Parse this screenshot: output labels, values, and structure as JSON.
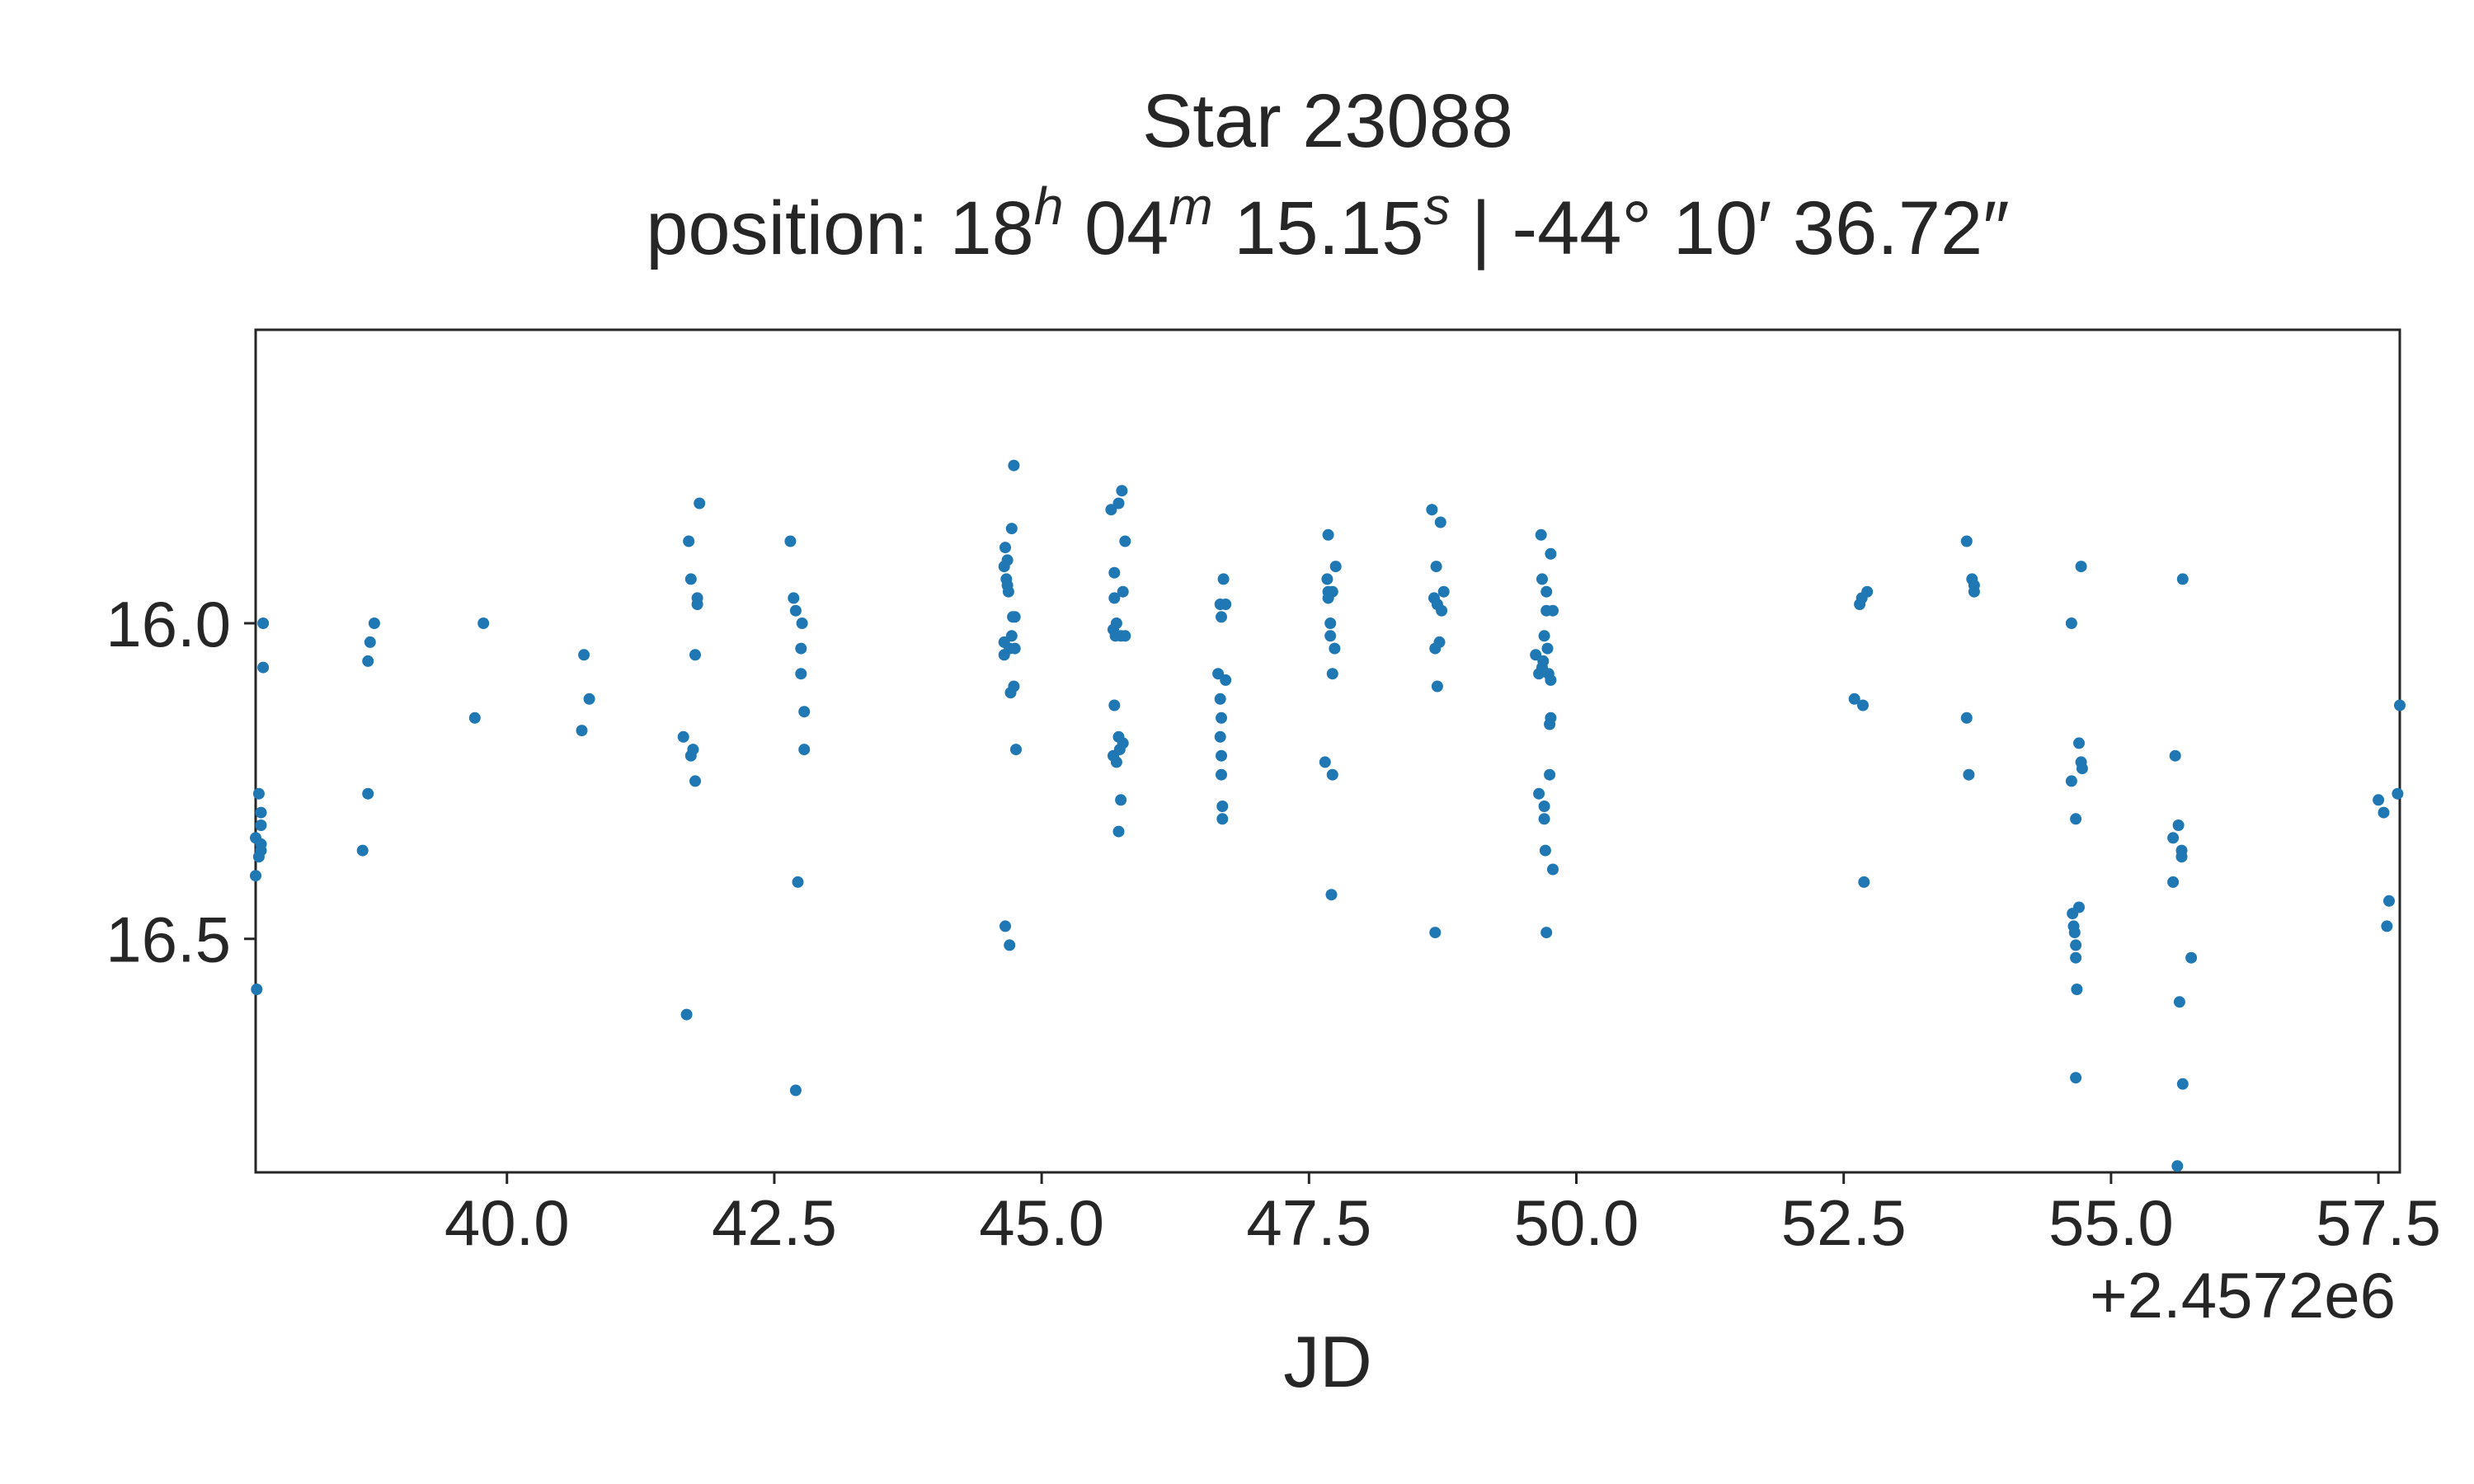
{
  "chart_data": {
    "type": "scatter",
    "title_line1": "Star 23088",
    "title_line2": {
      "prefix": "position: 18",
      "h_sup": "h",
      "mid1": " 04",
      "m_sup": "m",
      "mid2": " 15.15",
      "s_sup": "s",
      "suffix": " | -44° 10′ 36.72″"
    },
    "xlabel": "JD",
    "x_offset_label": "+2.4572e6",
    "x_offset": 2457200,
    "xlim": [
      37.65,
      57.7
    ],
    "ylim": [
      16.87,
      15.535
    ],
    "y_inverted": true,
    "grid": false,
    "xticks": [
      40.0,
      42.5,
      45.0,
      47.5,
      50.0,
      52.5,
      55.0,
      57.5
    ],
    "xtick_labels": [
      "40.0",
      "42.5",
      "45.0",
      "47.5",
      "50.0",
      "52.5",
      "55.0",
      "57.5"
    ],
    "yticks": [
      16.0,
      16.5
    ],
    "ytick_labels": [
      "16.0",
      "16.5"
    ],
    "marker_color": "#1f77b4",
    "points": [
      [
        37.65,
        16.34
      ],
      [
        37.65,
        16.4
      ],
      [
        37.66,
        16.58
      ],
      [
        37.68,
        16.27
      ],
      [
        37.68,
        16.37
      ],
      [
        37.7,
        16.3
      ],
      [
        37.7,
        16.36
      ],
      [
        37.7,
        16.35
      ],
      [
        37.7,
        16.32
      ],
      [
        37.72,
        16.07
      ],
      [
        37.72,
        16.0
      ],
      [
        38.65,
        16.36
      ],
      [
        38.7,
        16.27
      ],
      [
        38.7,
        16.06
      ],
      [
        38.72,
        16.03
      ],
      [
        38.76,
        16.0
      ],
      [
        39.7,
        16.15
      ],
      [
        39.78,
        16.0
      ],
      [
        40.7,
        16.17
      ],
      [
        40.72,
        16.05
      ],
      [
        40.77,
        16.12
      ],
      [
        41.65,
        16.18
      ],
      [
        41.68,
        16.62
      ],
      [
        41.7,
        15.87
      ],
      [
        41.72,
        15.93
      ],
      [
        41.72,
        16.21
      ],
      [
        41.74,
        16.2
      ],
      [
        41.76,
        16.25
      ],
      [
        41.76,
        16.05
      ],
      [
        41.78,
        15.97
      ],
      [
        41.78,
        15.96
      ],
      [
        41.8,
        15.81
      ],
      [
        42.65,
        15.87
      ],
      [
        42.68,
        15.96
      ],
      [
        42.7,
        16.74
      ],
      [
        42.7,
        15.98
      ],
      [
        42.72,
        16.41
      ],
      [
        42.75,
        16.08
      ],
      [
        42.75,
        16.04
      ],
      [
        42.76,
        16.0
      ],
      [
        42.78,
        16.14
      ],
      [
        42.78,
        16.2
      ],
      [
        44.65,
        16.05
      ],
      [
        44.65,
        16.03
      ],
      [
        44.65,
        15.91
      ],
      [
        44.66,
        16.48
      ],
      [
        44.66,
        15.88
      ],
      [
        44.67,
        15.93
      ],
      [
        44.68,
        15.9
      ],
      [
        44.68,
        15.94
      ],
      [
        44.69,
        15.95
      ],
      [
        44.7,
        16.51
      ],
      [
        44.7,
        16.04
      ],
      [
        44.71,
        16.11
      ],
      [
        44.72,
        15.85
      ],
      [
        44.72,
        16.02
      ],
      [
        44.73,
        15.99
      ],
      [
        44.74,
        16.1
      ],
      [
        44.74,
        15.75
      ],
      [
        44.75,
        16.04
      ],
      [
        44.75,
        15.99
      ],
      [
        44.76,
        16.2
      ],
      [
        45.65,
        15.82
      ],
      [
        45.67,
        16.21
      ],
      [
        45.67,
        16.01
      ],
      [
        45.68,
        15.96
      ],
      [
        45.68,
        15.92
      ],
      [
        45.68,
        16.13
      ],
      [
        45.69,
        16.02
      ],
      [
        45.7,
        16.0
      ],
      [
        45.7,
        16.22
      ],
      [
        45.72,
        16.33
      ],
      [
        45.72,
        15.81
      ],
      [
        45.72,
        16.18
      ],
      [
        45.73,
        16.2
      ],
      [
        45.74,
        16.02
      ],
      [
        45.74,
        16.28
      ],
      [
        45.75,
        15.79
      ],
      [
        45.76,
        16.19
      ],
      [
        45.76,
        15.95
      ],
      [
        45.78,
        15.87
      ],
      [
        45.78,
        16.02
      ],
      [
        46.65,
        16.08
      ],
      [
        46.67,
        16.12
      ],
      [
        46.67,
        15.97
      ],
      [
        46.67,
        16.18
      ],
      [
        46.68,
        16.21
      ],
      [
        46.68,
        16.15
      ],
      [
        46.68,
        16.24
      ],
      [
        46.68,
        15.99
      ],
      [
        46.69,
        16.29
      ],
      [
        46.69,
        16.31
      ],
      [
        46.7,
        15.93
      ],
      [
        46.72,
        16.09
      ],
      [
        46.72,
        15.97
      ],
      [
        47.65,
        16.22
      ],
      [
        47.67,
        15.93
      ],
      [
        47.68,
        15.95
      ],
      [
        47.68,
        15.86
      ],
      [
        47.68,
        15.96
      ],
      [
        47.7,
        16.0
      ],
      [
        47.7,
        16.02
      ],
      [
        47.71,
        16.43
      ],
      [
        47.72,
        16.08
      ],
      [
        47.72,
        16.24
      ],
      [
        47.72,
        15.95
      ],
      [
        47.74,
        16.04
      ],
      [
        47.75,
        15.91
      ],
      [
        48.65,
        15.82
      ],
      [
        48.67,
        15.96
      ],
      [
        48.68,
        16.04
      ],
      [
        48.68,
        16.49
      ],
      [
        48.69,
        15.91
      ],
      [
        48.7,
        16.1
      ],
      [
        48.7,
        15.97
      ],
      [
        48.72,
        16.03
      ],
      [
        48.73,
        15.84
      ],
      [
        48.74,
        15.98
      ],
      [
        48.76,
        15.95
      ],
      [
        49.62,
        16.05
      ],
      [
        49.65,
        16.08
      ],
      [
        49.65,
        16.27
      ],
      [
        49.67,
        15.86
      ],
      [
        49.68,
        15.93
      ],
      [
        49.68,
        16.07
      ],
      [
        49.69,
        16.06
      ],
      [
        49.7,
        16.02
      ],
      [
        49.7,
        16.29
      ],
      [
        49.7,
        16.31
      ],
      [
        49.71,
        16.36
      ],
      [
        49.72,
        15.98
      ],
      [
        49.72,
        15.95
      ],
      [
        49.72,
        16.49
      ],
      [
        49.73,
        16.04
      ],
      [
        49.74,
        16.08
      ],
      [
        49.75,
        16.24
      ],
      [
        49.75,
        16.16
      ],
      [
        49.76,
        15.89
      ],
      [
        49.76,
        16.15
      ],
      [
        49.76,
        16.09
      ],
      [
        49.78,
        15.98
      ],
      [
        49.78,
        16.39
      ],
      [
        52.6,
        16.12
      ],
      [
        52.65,
        15.97
      ],
      [
        52.67,
        15.96
      ],
      [
        52.68,
        16.13
      ],
      [
        52.69,
        16.41
      ],
      [
        52.72,
        15.95
      ],
      [
        53.65,
        15.87
      ],
      [
        53.65,
        16.15
      ],
      [
        53.67,
        16.24
      ],
      [
        53.7,
        15.93
      ],
      [
        53.72,
        15.95
      ],
      [
        53.72,
        15.94
      ],
      [
        54.63,
        16.0
      ],
      [
        54.63,
        16.25
      ],
      [
        54.64,
        16.46
      ],
      [
        54.65,
        16.48
      ],
      [
        54.66,
        16.49
      ],
      [
        54.67,
        16.31
      ],
      [
        54.67,
        16.53
      ],
      [
        54.67,
        16.51
      ],
      [
        54.67,
        16.72
      ],
      [
        54.68,
        16.58
      ],
      [
        54.7,
        16.19
      ],
      [
        54.7,
        16.45
      ],
      [
        54.72,
        16.22
      ],
      [
        54.72,
        15.91
      ],
      [
        54.73,
        16.23
      ],
      [
        55.58,
        16.34
      ],
      [
        55.58,
        16.41
      ],
      [
        55.6,
        16.21
      ],
      [
        55.62,
        16.86
      ],
      [
        55.63,
        16.32
      ],
      [
        55.64,
        16.6
      ],
      [
        55.66,
        16.36
      ],
      [
        55.66,
        16.37
      ],
      [
        55.67,
        16.73
      ],
      [
        55.67,
        15.93
      ],
      [
        55.75,
        16.53
      ],
      [
        57.5,
        16.28
      ],
      [
        57.55,
        16.3
      ],
      [
        57.58,
        16.48
      ],
      [
        57.6,
        16.44
      ],
      [
        57.68,
        16.27
      ],
      [
        57.7,
        16.13
      ]
    ]
  }
}
